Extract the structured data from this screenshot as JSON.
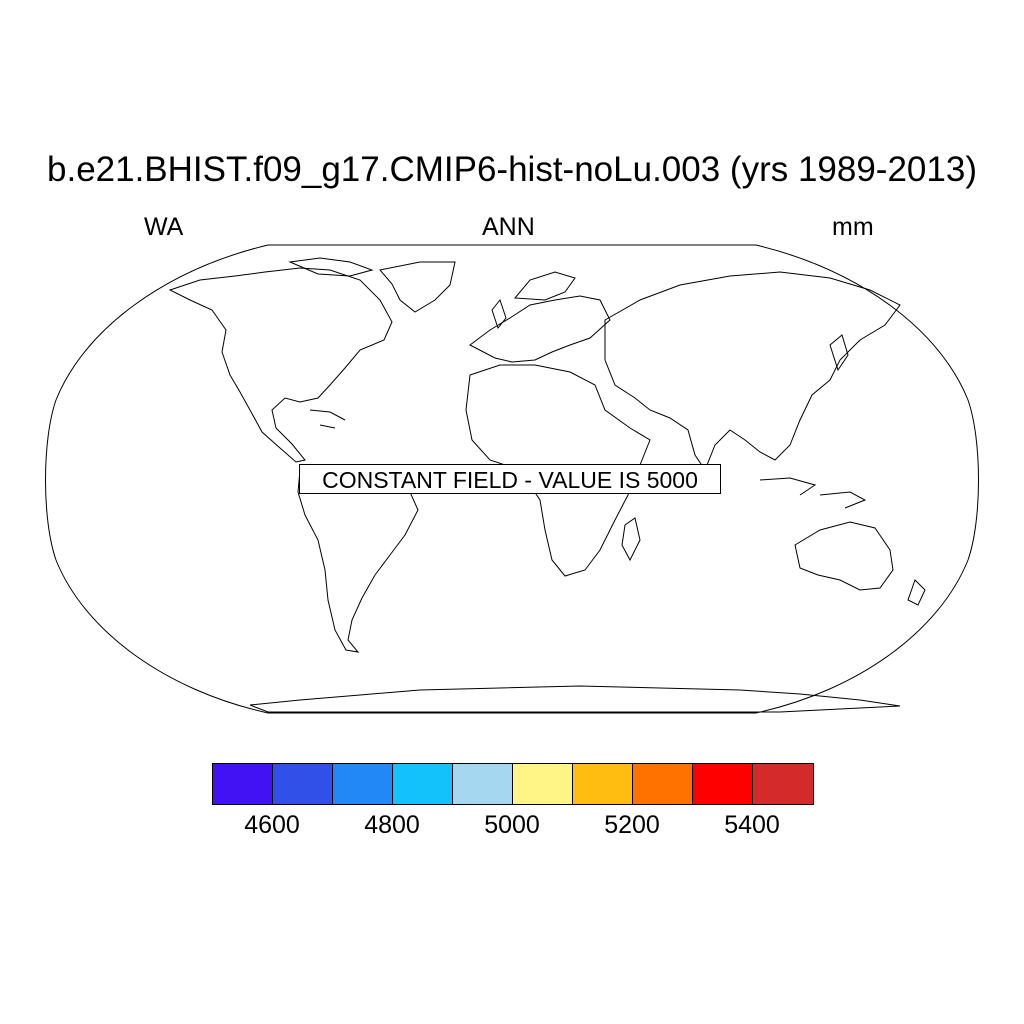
{
  "title": "b.e21.BHIST.f09_g17.CMIP6-hist-noLu.003 (yrs 1989-2013)",
  "subtitle_left": "WA",
  "subtitle_center": "ANN",
  "subtitle_right": "mm",
  "constant_field_label": "CONSTANT FIELD - VALUE IS 5000",
  "colorbar": {
    "boxes": [
      {
        "lower": 4500,
        "upper": 4600,
        "color": "#4212f5"
      },
      {
        "lower": 4600,
        "upper": 4700,
        "color": "#3050e8"
      },
      {
        "lower": 4700,
        "upper": 4800,
        "color": "#2288f5"
      },
      {
        "lower": 4800,
        "upper": 4900,
        "color": "#13c2fa"
      },
      {
        "lower": 4900,
        "upper": 5000,
        "color": "#a5d8f0"
      },
      {
        "lower": 5000,
        "upper": 5100,
        "color": "#fff587"
      },
      {
        "lower": 5100,
        "upper": 5200,
        "color": "#ffbd12"
      },
      {
        "lower": 5200,
        "upper": 5300,
        "color": "#ff7200"
      },
      {
        "lower": 5300,
        "upper": 5400,
        "color": "#ff0000"
      },
      {
        "lower": 5400,
        "upper": 5500,
        "color": "#d42a2a"
      }
    ],
    "tick_labels": [
      "4600",
      "4800",
      "5000",
      "5200",
      "5400"
    ]
  },
  "map": {
    "projection": "Robinson",
    "coastlines": true,
    "field_value": 5000
  }
}
